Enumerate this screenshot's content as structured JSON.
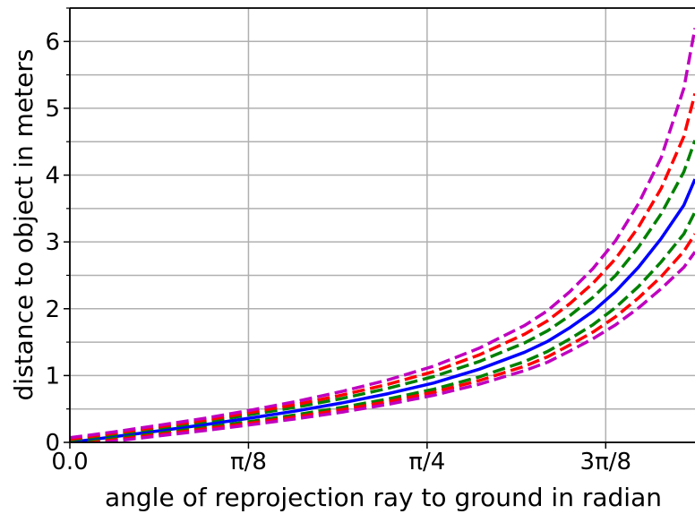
{
  "chart_data": {
    "type": "line",
    "title": "",
    "xlabel": "angle of reprojection ray to ground in radian",
    "ylabel": "distance to object in meters",
    "xlim": [
      0.0,
      1.3744
    ],
    "ylim": [
      0,
      6.5
    ],
    "x_ticks": [
      {
        "value": 0.0,
        "label": "0.0"
      },
      {
        "value": 0.3927,
        "label": "π/8"
      },
      {
        "value": 0.7854,
        "label": "π/4"
      },
      {
        "value": 1.1781,
        "label": "3π/8"
      }
    ],
    "y_major_ticks": [
      {
        "value": 0,
        "label": "0"
      },
      {
        "value": 1,
        "label": "1"
      },
      {
        "value": 2,
        "label": "2"
      },
      {
        "value": 3,
        "label": "3"
      },
      {
        "value": 4,
        "label": "4"
      },
      {
        "value": 5,
        "label": "5"
      },
      {
        "value": 6,
        "label": "6"
      }
    ],
    "y_minor_ticks": [
      0.5,
      1.5,
      2.5,
      3.5,
      4.5,
      5.5,
      6.5
    ],
    "grid": true,
    "x": [
      0.0,
      0.1,
      0.2,
      0.3,
      0.4,
      0.5,
      0.6,
      0.7,
      0.8,
      0.9,
      1.0,
      1.05,
      1.1,
      1.15,
      1.2,
      1.25,
      1.3,
      1.35,
      1.3744
    ],
    "series": [
      {
        "color": "#0000ff",
        "style": "solid",
        "values": [
          0.0,
          0.087,
          0.175,
          0.268,
          0.367,
          0.473,
          0.593,
          0.729,
          0.888,
          1.095,
          1.35,
          1.51,
          1.72,
          1.96,
          2.26,
          2.62,
          3.05,
          3.55,
          3.94
        ]
      },
      {
        "color": "#008000",
        "style": "dashed",
        "values": [
          0.03,
          0.12,
          0.215,
          0.31,
          0.42,
          0.53,
          0.66,
          0.81,
          0.985,
          1.21,
          1.49,
          1.67,
          1.9,
          2.17,
          2.5,
          2.92,
          3.42,
          4.05,
          4.52
        ]
      },
      {
        "color": "#008000",
        "style": "dashed",
        "values": [
          -0.03,
          0.06,
          0.14,
          0.225,
          0.315,
          0.415,
          0.525,
          0.65,
          0.795,
          0.98,
          1.21,
          1.36,
          1.55,
          1.76,
          2.02,
          2.33,
          2.7,
          3.12,
          3.45
        ]
      },
      {
        "color": "#ff0000",
        "style": "dashed",
        "values": [
          0.045,
          0.14,
          0.235,
          0.335,
          0.45,
          0.57,
          0.71,
          0.87,
          1.06,
          1.31,
          1.62,
          1.82,
          2.08,
          2.38,
          2.75,
          3.22,
          3.8,
          4.58,
          5.22
        ]
      },
      {
        "color": "#ff0000",
        "style": "dashed",
        "values": [
          -0.045,
          0.04,
          0.12,
          0.205,
          0.29,
          0.385,
          0.49,
          0.61,
          0.75,
          0.925,
          1.14,
          1.28,
          1.46,
          1.65,
          1.88,
          2.16,
          2.48,
          2.86,
          3.12
        ]
      },
      {
        "color": "#bf00bf",
        "style": "dashed",
        "values": [
          0.07,
          0.16,
          0.26,
          0.365,
          0.485,
          0.615,
          0.765,
          0.935,
          1.14,
          1.41,
          1.75,
          1.97,
          2.26,
          2.6,
          3.02,
          3.57,
          4.26,
          5.3,
          6.2
        ]
      },
      {
        "color": "#bf00bf",
        "style": "dashed",
        "values": [
          -0.06,
          0.02,
          0.1,
          0.18,
          0.265,
          0.355,
          0.455,
          0.57,
          0.705,
          0.87,
          1.075,
          1.2,
          1.37,
          1.55,
          1.76,
          2.01,
          2.3,
          2.62,
          2.85
        ]
      }
    ]
  }
}
